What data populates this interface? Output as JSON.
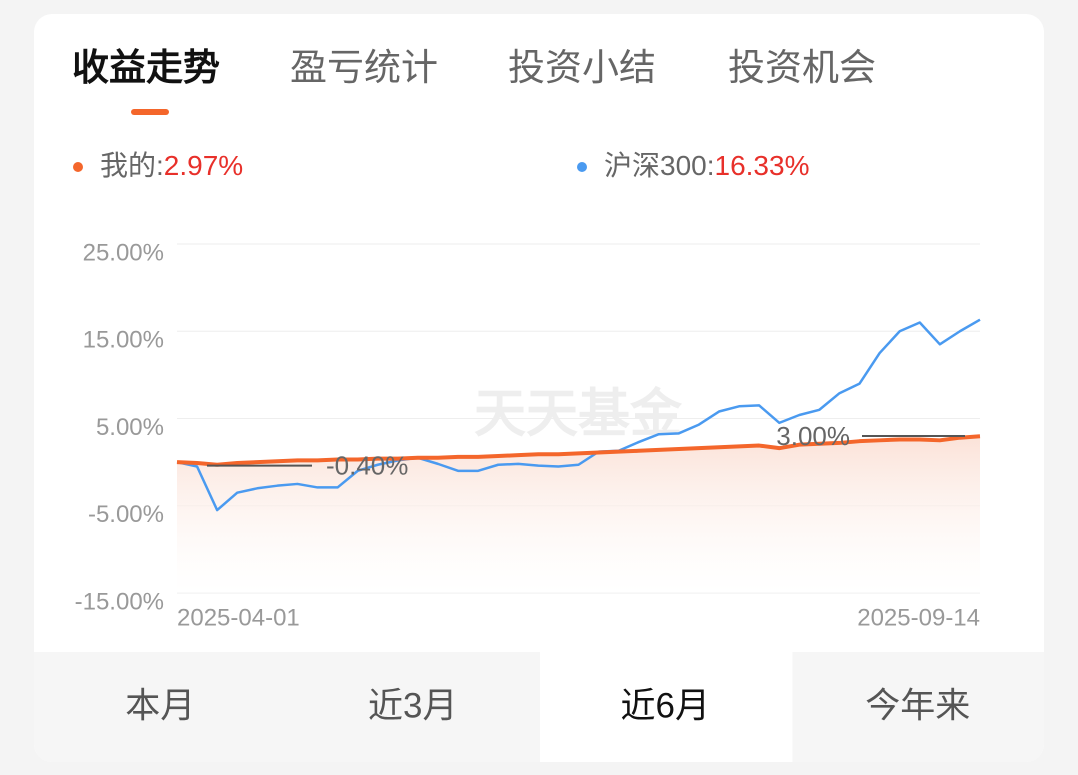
{
  "tabs": {
    "items": [
      "收益走势",
      "盈亏统计",
      "投资小结",
      "投资机会"
    ],
    "active": 0
  },
  "chart_data": {
    "type": "line",
    "watermark": "天天基金",
    "categories": [
      "2025-04-01",
      null,
      null,
      null,
      null,
      null,
      null,
      null,
      null,
      null,
      null,
      null,
      null,
      null,
      null,
      null,
      null,
      null,
      null,
      null,
      null,
      null,
      null,
      null,
      null,
      null,
      null,
      null,
      null,
      null,
      null,
      null,
      null,
      null,
      null,
      null,
      null,
      null,
      null,
      null,
      "2025-09-14"
    ],
    "series": [
      {
        "name": "我的:",
        "return_label": "2.97%",
        "color": "#f4662b",
        "values": [
          0,
          -0.1,
          -0.3,
          -0.1,
          0.0,
          0.1,
          0.2,
          0.2,
          0.3,
          0.3,
          0.4,
          0.4,
          0.5,
          0.5,
          0.6,
          0.6,
          0.7,
          0.8,
          0.9,
          0.9,
          1.0,
          1.1,
          1.2,
          1.3,
          1.4,
          1.5,
          1.6,
          1.7,
          1.8,
          1.9,
          1.6,
          2.0,
          2.1,
          2.2,
          2.4,
          2.5,
          2.6,
          2.6,
          2.5,
          2.8,
          2.97
        ]
      },
      {
        "name": "沪深300:",
        "return_label": "16.33%",
        "color": "#4a9af0",
        "values": [
          0,
          -0.5,
          -5.5,
          -3.5,
          -3,
          -2.7,
          -2.5,
          -2.9,
          -2.9,
          -1,
          -0.3,
          0.2,
          0.5,
          -0.2,
          -1,
          -1,
          -0.3,
          -0.2,
          -0.4,
          -0.5,
          -0.3,
          1.2,
          1.3,
          2.3,
          3.2,
          3.3,
          4.3,
          5.8,
          6.4,
          6.5,
          4.5,
          5.4,
          6,
          7.9,
          9,
          12.5,
          15,
          16,
          13.5,
          15,
          16.33
        ]
      }
    ],
    "annotations": [
      {
        "label": "-0.40%",
        "value": -0.4
      },
      {
        "label": "3.00%",
        "value": 3.0
      }
    ],
    "ylim": [
      -15,
      25
    ],
    "yticks": [
      {
        "value": -15,
        "label": "-15.00%"
      },
      {
        "value": -5,
        "label": "-5.00%"
      },
      {
        "value": 5,
        "label": "5.00%"
      },
      {
        "value": 15,
        "label": "15.00%"
      },
      {
        "value": 25,
        "label": "25.00%"
      }
    ],
    "grid": true
  },
  "periods": {
    "items": [
      "本月",
      "近3月",
      "近6月",
      "今年来"
    ],
    "active": 2
  }
}
